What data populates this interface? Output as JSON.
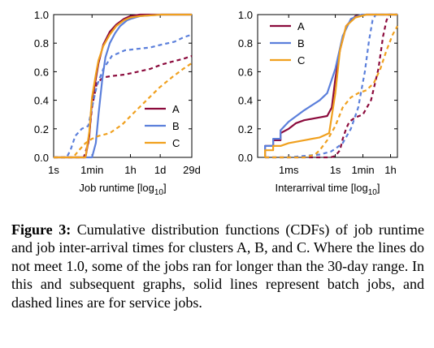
{
  "series_colors": {
    "A": "#8b0a3c",
    "B": "#5b7fdb",
    "C": "#f0a01e"
  },
  "chart_data": [
    {
      "type": "line",
      "xlabel": "Job runtime [log",
      "xlabel_sub": "10",
      "xlabel_close": "]",
      "xscale": "log10 (seconds)",
      "x_ticks": [
        {
          "label": "1s",
          "value": 1
        },
        {
          "label": "1min",
          "value": 60
        },
        {
          "label": "1h",
          "value": 3600
        },
        {
          "label": "1d",
          "value": 86400
        },
        {
          "label": "29d",
          "value": 2505600
        }
      ],
      "xlim": [
        1,
        2505600
      ],
      "y_ticks": [
        "0.0",
        "0.2",
        "0.4",
        "0.6",
        "0.8",
        "1.0"
      ],
      "ylim": [
        0,
        1
      ],
      "grid": false,
      "legend_position": "lower-right",
      "series": [
        {
          "name": "A",
          "style": "solid",
          "x": [
            1,
            30,
            45,
            60,
            90,
            120,
            200,
            400,
            800,
            1800,
            3600,
            10000,
            100000,
            2505600
          ],
          "y": [
            0,
            0,
            0.15,
            0.4,
            0.55,
            0.66,
            0.79,
            0.88,
            0.93,
            0.97,
            0.99,
            1.0,
            1.0,
            1.0
          ]
        },
        {
          "name": "A",
          "style": "dashed",
          "x": [
            1,
            25,
            40,
            60,
            100,
            200,
            500,
            2000,
            8000,
            30000,
            100000,
            300000,
            1000000,
            2505600
          ],
          "y": [
            0,
            0,
            0.1,
            0.35,
            0.52,
            0.56,
            0.57,
            0.58,
            0.6,
            0.62,
            0.65,
            0.67,
            0.69,
            0.71
          ]
        },
        {
          "name": "B",
          "style": "solid",
          "x": [
            1,
            60,
            90,
            120,
            180,
            250,
            400,
            700,
            1200,
            2500,
            3600,
            10000,
            100000,
            2505600
          ],
          "y": [
            0,
            0,
            0.1,
            0.3,
            0.55,
            0.7,
            0.8,
            0.87,
            0.92,
            0.96,
            0.97,
            0.99,
            1.0,
            1.0
          ]
        },
        {
          "name": "B",
          "style": "dashed",
          "x": [
            1,
            4,
            6,
            10,
            20,
            40,
            60,
            100,
            200,
            500,
            2000,
            8000,
            30000,
            100000,
            400000,
            1000000,
            2505600
          ],
          "y": [
            0,
            0,
            0.05,
            0.15,
            0.2,
            0.22,
            0.35,
            0.5,
            0.62,
            0.71,
            0.75,
            0.76,
            0.77,
            0.79,
            0.81,
            0.84,
            0.86
          ]
        },
        {
          "name": "C",
          "style": "solid",
          "x": [
            1,
            30,
            45,
            60,
            90,
            120,
            200,
            400,
            800,
            1800,
            3600,
            10000,
            100000,
            2505600
          ],
          "y": [
            0,
            0,
            0.18,
            0.42,
            0.58,
            0.68,
            0.78,
            0.86,
            0.92,
            0.96,
            0.98,
            0.99,
            1.0,
            1.0
          ]
        },
        {
          "name": "C",
          "style": "dashed",
          "x": [
            1,
            8,
            15,
            30,
            60,
            120,
            400,
            1500,
            5000,
            20000,
            80000,
            300000,
            1000000,
            2505600
          ],
          "y": [
            0,
            0,
            0.05,
            0.1,
            0.13,
            0.15,
            0.17,
            0.23,
            0.31,
            0.4,
            0.49,
            0.56,
            0.62,
            0.66
          ]
        }
      ]
    },
    {
      "type": "line",
      "xlabel": "Interarrival time [log",
      "xlabel_sub": "10",
      "xlabel_close": "]",
      "xscale": "log10 (seconds)",
      "x_ticks": [
        {
          "label": "1ms",
          "value": 0.001
        },
        {
          "label": "1s",
          "value": 1
        },
        {
          "label": "1min",
          "value": 60
        },
        {
          "label": "1h",
          "value": 3600
        }
      ],
      "xlim": [
        1e-05,
        10000
      ],
      "y_ticks": [
        "0.0",
        "0.2",
        "0.4",
        "0.6",
        "0.8",
        "1.0"
      ],
      "ylim": [
        0,
        1
      ],
      "grid": false,
      "legend_position": "top-left",
      "series": [
        {
          "name": "A",
          "style": "solid",
          "x": [
            3e-05,
            3e-05,
            0.0001,
            0.0001,
            0.0003,
            0.0003,
            0.001,
            0.003,
            0.01,
            0.1,
            0.3,
            0.6,
            1,
            2,
            5,
            20,
            100,
            1000,
            10000
          ],
          "y": [
            0,
            0.08,
            0.08,
            0.12,
            0.12,
            0.17,
            0.2,
            0.24,
            0.26,
            0.28,
            0.29,
            0.35,
            0.55,
            0.75,
            0.92,
            0.99,
            1.0,
            1.0,
            1.0
          ]
        },
        {
          "name": "A",
          "style": "dashed",
          "x": [
            3e-05,
            0.01,
            0.1,
            0.5,
            1,
            2,
            3,
            5,
            8,
            20,
            60,
            200,
            600,
            1200,
            2000,
            3000,
            10000
          ],
          "y": [
            0,
            0,
            0,
            0,
            0.01,
            0.05,
            0.13,
            0.2,
            0.25,
            0.28,
            0.3,
            0.4,
            0.62,
            0.85,
            0.96,
            1.0,
            1.0
          ]
        },
        {
          "name": "B",
          "style": "solid",
          "x": [
            3e-05,
            3e-05,
            0.0001,
            0.0001,
            0.0003,
            0.0003,
            0.001,
            0.01,
            0.1,
            0.3,
            1,
            3,
            10,
            50,
            200,
            1000,
            10000
          ],
          "y": [
            0,
            0.08,
            0.08,
            0.13,
            0.13,
            0.19,
            0.25,
            0.33,
            0.4,
            0.45,
            0.62,
            0.85,
            0.97,
            1.0,
            1.0,
            1.0,
            1.0
          ]
        },
        {
          "name": "B",
          "style": "dashed",
          "x": [
            3e-05,
            0.001,
            0.01,
            0.1,
            0.5,
            1,
            3,
            10,
            30,
            80,
            150,
            250,
            400,
            1000,
            10000
          ],
          "y": [
            0,
            0,
            0.01,
            0.02,
            0.04,
            0.06,
            0.1,
            0.2,
            0.35,
            0.6,
            0.82,
            0.96,
            1.0,
            1.0,
            1.0
          ]
        },
        {
          "name": "C",
          "style": "solid",
          "x": [
            3e-05,
            3e-05,
            0.0001,
            0.0001,
            0.0003,
            0.001,
            0.01,
            0.1,
            0.4,
            1,
            2,
            5,
            20,
            100,
            1000,
            10000
          ],
          "y": [
            0,
            0.05,
            0.05,
            0.08,
            0.08,
            0.1,
            0.12,
            0.14,
            0.17,
            0.45,
            0.75,
            0.92,
            0.98,
            1.0,
            1.0,
            1.0
          ]
        },
        {
          "name": "C",
          "style": "dashed",
          "x": [
            3e-05,
            0.01,
            0.05,
            0.1,
            0.3,
            1,
            3,
            10,
            30,
            100,
            300,
            800,
            2000,
            5000,
            10000
          ],
          "y": [
            0,
            0,
            0.02,
            0.05,
            0.12,
            0.22,
            0.35,
            0.42,
            0.45,
            0.47,
            0.52,
            0.62,
            0.75,
            0.86,
            0.92
          ]
        }
      ]
    }
  ],
  "caption": {
    "label": "Figure 3:",
    "text": "Cumulative distribution functions (CDFs) of job runtime and job inter-arrival times for clusters A, B, and C. Where the lines do not meet 1.0, some of the jobs ran for longer than the 30-day range. In this and subsequent graphs, solid lines represent batch jobs, and dashed lines are for service jobs."
  }
}
